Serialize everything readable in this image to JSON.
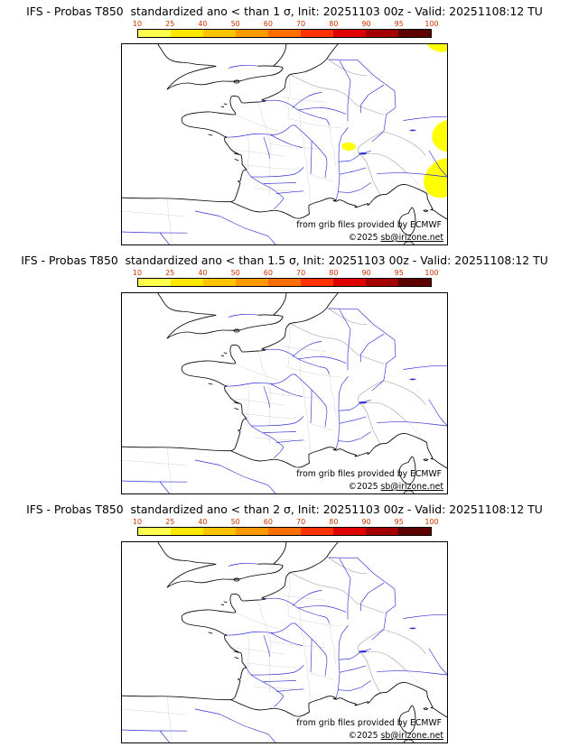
{
  "colors": {
    "coastline": "#000000",
    "river": "#2f2fd3",
    "admin": "#c6c6c6",
    "border": "#9a9a9a",
    "anomaly": "#ffff00",
    "tick_label": "#cc3300",
    "background": "#ffffff"
  },
  "colorbar": {
    "ticks": [
      "10",
      "25",
      "40",
      "50",
      "60",
      "70",
      "80",
      "90",
      "95",
      "100"
    ],
    "segment_colors": [
      "#ffff4d",
      "#ffe800",
      "#ffc400",
      "#ff9900",
      "#ff6f00",
      "#ff3300",
      "#e00000",
      "#a30000",
      "#5c0000"
    ]
  },
  "panels": [
    {
      "title": "IFS - Probas T850  standardized ano < than 1 σ, Init: 20251103 00z - Valid: 20251108:12 TU",
      "threshold_sigma": "1",
      "attribution": "from grib files provided by ECMWF",
      "copyright_prefix": "©2025 ",
      "copyright_handle": "sb@irizone.net",
      "has_anomaly_shading": true
    },
    {
      "title": "IFS - Probas T850  standardized ano < than 1.5 σ, Init: 20251103 00z - Valid: 20251108:12 TU",
      "threshold_sigma": "1.5",
      "attribution": "from grib files provided by ECMWF",
      "copyright_prefix": "©2025 ",
      "copyright_handle": "sb@irizone.net",
      "has_anomaly_shading": false
    },
    {
      "title": "IFS - Probas T850  standardized ano < than 2 σ, Init: 20251103 00z - Valid: 20251108:12 TU",
      "threshold_sigma": "2",
      "attribution": "from grib files provided by ECMWF",
      "copyright_prefix": "©2025 ",
      "copyright_handle": "sb@irizone.net",
      "has_anomaly_shading": false
    }
  ]
}
